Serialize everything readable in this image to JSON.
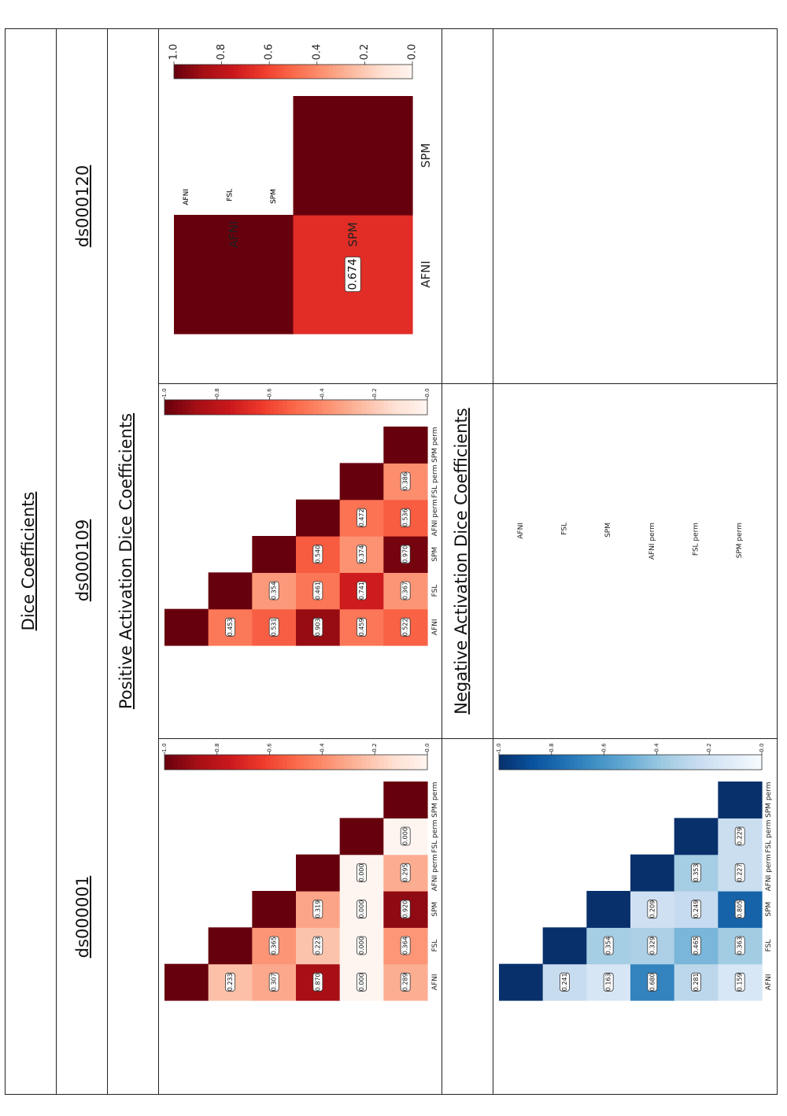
{
  "table": {
    "title": "Dice Coefficients",
    "datasets": [
      "ds000001",
      "ds000109",
      "ds000120"
    ],
    "positive_label": "Positive Activation Dice Coefficients",
    "negative_label": "Negative Activation Dice Coefficients"
  },
  "chart_data": [
    {
      "type": "heatmap",
      "id": "pos_ds000001",
      "title": "ds000001 positive",
      "colormap": "Reds",
      "labels": [
        "AFNI",
        "FSL",
        "SPM",
        "AFNI perm",
        "FSL perm",
        "SPM perm"
      ],
      "matrix": [
        [
          1.0,
          null,
          null,
          null,
          null,
          null
        ],
        [
          0.233,
          1.0,
          null,
          null,
          null,
          null
        ],
        [
          0.307,
          0.365,
          1.0,
          null,
          null,
          null
        ],
        [
          0.87,
          0.223,
          0.319,
          1.0,
          null,
          null
        ],
        [
          0.0,
          0.0,
          0.0,
          0.0,
          1.0,
          null
        ],
        [
          0.289,
          0.364,
          0.92,
          0.295,
          0.0,
          1.0
        ]
      ],
      "annotations": [
        [
          null,
          null,
          null,
          null,
          null,
          null
        ],
        [
          "0.233",
          null,
          null,
          null,
          null,
          null
        ],
        [
          "0.307",
          "0.365",
          null,
          null,
          null,
          null
        ],
        [
          "0.870",
          "0.223",
          "0.319",
          null,
          null,
          null
        ],
        [
          "0.000",
          "0.000",
          "0.000",
          "0.000",
          null,
          null
        ],
        [
          "0.289",
          "0.364",
          "0.920",
          "0.295",
          "0.000",
          null
        ]
      ],
      "colorbar_ticks": [
        "1.0",
        "0.8",
        "0.6",
        "0.4",
        "0.2",
        "0.0"
      ],
      "colorbar_range": [
        0,
        1
      ]
    },
    {
      "type": "heatmap",
      "id": "pos_ds000109",
      "title": "ds000109 positive",
      "colormap": "Reds",
      "labels": [
        "AFNI",
        "FSL",
        "SPM",
        "AFNI perm",
        "FSL perm",
        "SPM perm"
      ],
      "matrix": [
        [
          1.0,
          null,
          null,
          null,
          null,
          null
        ],
        [
          0.453,
          1.0,
          null,
          null,
          null,
          null
        ],
        [
          0.531,
          0.354,
          1.0,
          null,
          null,
          null
        ],
        [
          0.903,
          0.461,
          0.54,
          1.0,
          null,
          null
        ],
        [
          0.459,
          0.741,
          0.374,
          0.472,
          1.0,
          null
        ],
        [
          0.522,
          0.367,
          0.97,
          0.536,
          0.386,
          1.0
        ]
      ],
      "annotations": [
        [
          null,
          null,
          null,
          null,
          null,
          null
        ],
        [
          "0.453",
          null,
          null,
          null,
          null,
          null
        ],
        [
          "0.531",
          "0.354",
          null,
          null,
          null,
          null
        ],
        [
          "0.903",
          "0.461",
          "0.540",
          null,
          null,
          null
        ],
        [
          "0.459",
          "0.741",
          "0.374",
          "0.472",
          null,
          null
        ],
        [
          "0.522",
          "0.367",
          "0.970",
          "0.536",
          "0.386",
          null
        ]
      ],
      "colorbar_ticks": [
        "1.0",
        "0.8",
        "0.6",
        "0.4",
        "0.2",
        "0.0"
      ],
      "colorbar_range": [
        0,
        1
      ]
    },
    {
      "type": "heatmap",
      "id": "pos_ds000120",
      "title": "ds000120 positive",
      "colormap": "Reds",
      "labels": [
        "AFNI",
        "SPM"
      ],
      "matrix": [
        [
          1.0,
          null
        ],
        [
          0.674,
          1.0
        ]
      ],
      "annotations": [
        [
          null,
          null
        ],
        [
          "0.674",
          null
        ]
      ],
      "colorbar_ticks": [
        "1.0",
        "0.8",
        "0.6",
        "0.4",
        "0.2",
        "0.0"
      ],
      "colorbar_range": [
        0,
        1
      ]
    },
    {
      "type": "heatmap",
      "id": "neg_ds000001",
      "title": "ds000001 negative",
      "colormap": "Blues",
      "labels": [
        "AFNI",
        "FSL",
        "SPM",
        "AFNI perm",
        "FSL perm",
        "SPM perm"
      ],
      "matrix": [
        [
          1.0,
          null,
          null,
          null,
          null,
          null
        ],
        [
          0.241,
          1.0,
          null,
          null,
          null,
          null
        ],
        [
          0.163,
          0.354,
          1.0,
          null,
          null,
          null
        ],
        [
          0.68,
          0.329,
          0.209,
          1.0,
          null,
          null
        ],
        [
          0.281,
          0.465,
          0.249,
          0.353,
          1.0,
          null
        ],
        [
          0.159,
          0.363,
          0.805,
          0.227,
          0.229,
          1.0
        ]
      ],
      "annotations": [
        [
          null,
          null,
          null,
          null,
          null,
          null
        ],
        [
          "0.241",
          null,
          null,
          null,
          null,
          null
        ],
        [
          "0.163",
          "0.354",
          null,
          null,
          null,
          null
        ],
        [
          "0.680",
          "0.329",
          "0.209",
          null,
          null,
          null
        ],
        [
          "0.281",
          "0.465",
          "0.249",
          "0.353",
          null,
          null
        ],
        [
          "0.159",
          "0.363",
          "0.805",
          "0.227",
          "0.229",
          null
        ]
      ],
      "colorbar_ticks": [
        "1.0",
        "0.8",
        "0.6",
        "0.4",
        "0.2",
        "0.0"
      ],
      "colorbar_range": [
        0,
        1
      ]
    }
  ]
}
